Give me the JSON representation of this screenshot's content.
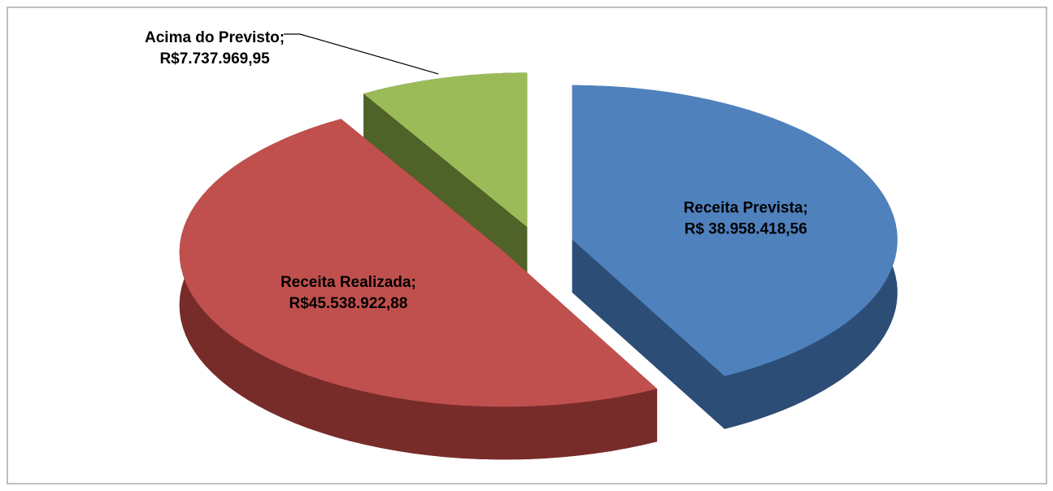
{
  "chart_data": {
    "type": "pie",
    "three_d": true,
    "exploded": true,
    "start_angle": 0,
    "direction": "clockwise",
    "categories": [
      "Receita Prevista",
      "Receita Realizada",
      "Acima do Previsto"
    ],
    "label_separator": ";",
    "values": [
      38958418.56,
      45538922.88,
      7737969.95
    ],
    "value_labels": [
      "R$ 38.958.418,56",
      "R$45.538.922,88",
      "R$7.737.969,95"
    ],
    "colors": [
      "#4f81bd",
      "#c0504d",
      "#9bbb59"
    ],
    "side_colors": [
      "#2c4d75",
      "#772c2a",
      "#4f6228"
    ]
  }
}
